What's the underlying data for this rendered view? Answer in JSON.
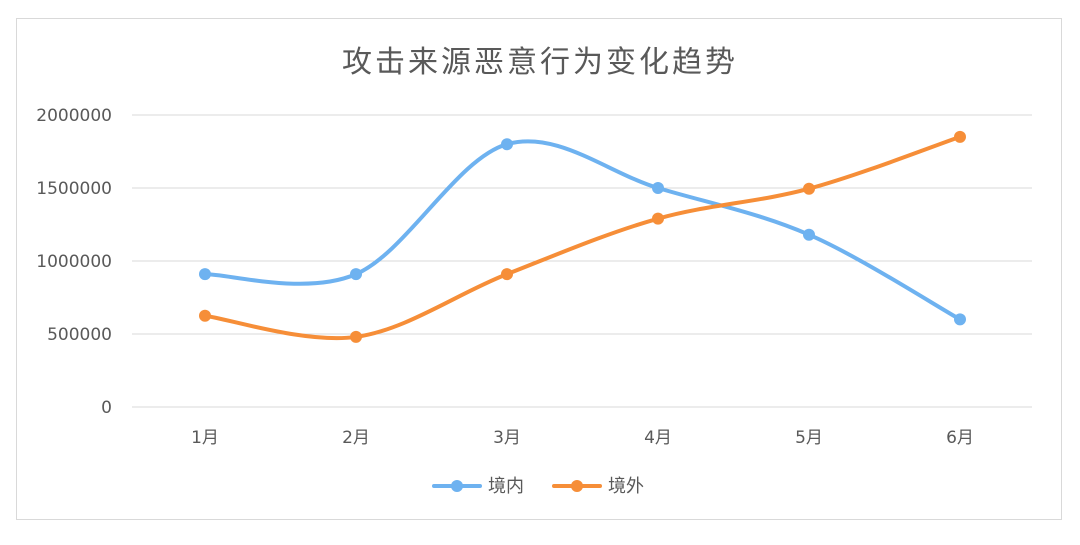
{
  "chart_data": {
    "type": "line",
    "title": "攻击来源恶意行为变化趋势",
    "categories": [
      "1月",
      "2月",
      "3月",
      "4月",
      "5月",
      "6月"
    ],
    "series": [
      {
        "name": "境内",
        "color": "#6eb2f0",
        "values": [
          910000,
          910000,
          1800000,
          1500000,
          1180000,
          600000
        ]
      },
      {
        "name": "境外",
        "color": "#f68e38",
        "values": [
          625000,
          480000,
          910000,
          1290000,
          1495000,
          1850000
        ]
      }
    ],
    "y_ticks": [
      "0",
      "500000",
      "1000000",
      "1500000",
      "2000000"
    ],
    "ylim": [
      0,
      2000000
    ],
    "grid": true,
    "smooth": true,
    "legend_position": "bottom"
  }
}
